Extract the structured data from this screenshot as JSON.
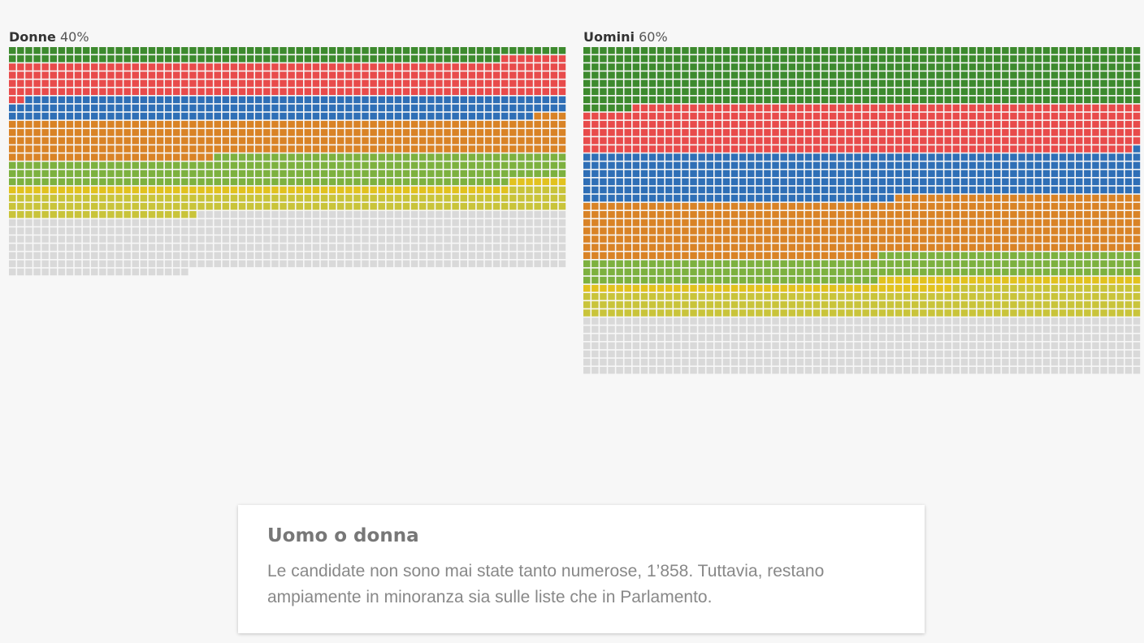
{
  "chart_data": [
    {
      "type": "waffle",
      "title_name": "Donne",
      "title_pct": "40%",
      "cols": 68,
      "total": 1858,
      "series": [
        {
          "color": "#3d8a2e",
          "value": 128
        },
        {
          "color": "#e84b4b",
          "value": 282
        },
        {
          "color": "#2f6fb6",
          "value": 198
        },
        {
          "color": "#d98326",
          "value": 301
        },
        {
          "color": "#7db13f",
          "value": 240
        },
        {
          "color": "#e2c21e",
          "value": 68
        },
        {
          "color": "#c9c43a",
          "value": 166
        },
        {
          "color": "#d9d9d9",
          "value": 475
        }
      ]
    },
    {
      "type": "waffle",
      "title_name": "Uomini",
      "title_pct": "60%",
      "cols": 68,
      "total": 2720,
      "series": [
        {
          "color": "#3d8a2e",
          "value": 482
        },
        {
          "color": "#e84b4b",
          "value": 401
        },
        {
          "color": "#2f6fb6",
          "value": 379
        },
        {
          "color": "#d98326",
          "value": 474
        },
        {
          "color": "#7db13f",
          "value": 204
        },
        {
          "color": "#e2c21e",
          "value": 77
        },
        {
          "color": "#c9c43a",
          "value": 227
        },
        {
          "color": "#d9d9d9",
          "value": 476
        }
      ]
    }
  ],
  "card": {
    "title": "Uomo o donna",
    "text": "Le candidate non sono mai state tanto numerose, 1’858. Tuttavia, restano ampiamente in minoranza sia sulle liste che in Parlamento."
  }
}
